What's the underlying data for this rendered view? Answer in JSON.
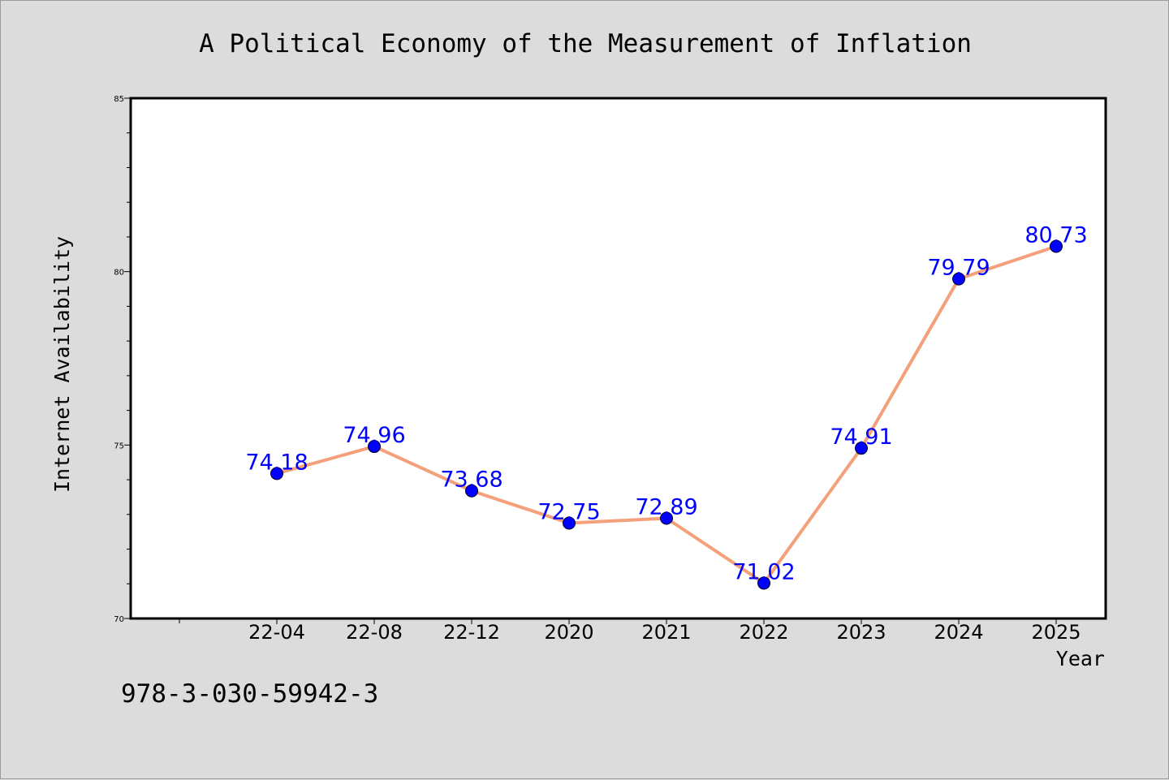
{
  "chart_data": {
    "type": "line",
    "title": "A Political Economy of the Measurement of Inflation",
    "xlabel": "Year",
    "ylabel": "Internet Availability",
    "categories": [
      "22-04",
      "22-08",
      "22-12",
      "2020",
      "2021",
      "2022",
      "2023",
      "2024",
      "2025"
    ],
    "series": [
      {
        "values": [
          74.18,
          74.96,
          73.68,
          72.75,
          72.89,
          71.02,
          74.91,
          79.79,
          80.73
        ],
        "data_labels": [
          "74.18",
          "74.96",
          "73.68",
          "72.75",
          "72.89",
          "71.02",
          "74.91",
          "79.79",
          "80.73"
        ]
      }
    ],
    "ylim": [
      70,
      85
    ],
    "y_ticks": [
      "70",
      "75",
      "80",
      "85"
    ],
    "grid": false,
    "legend": "none"
  },
  "footnote": "978-3-030-59942-3",
  "colors": {
    "line": "#f4a07a",
    "marker": "#0000ff",
    "data_label": "#0000ff",
    "background": "#dcdcdc",
    "plot_background": "#ffffff"
  }
}
